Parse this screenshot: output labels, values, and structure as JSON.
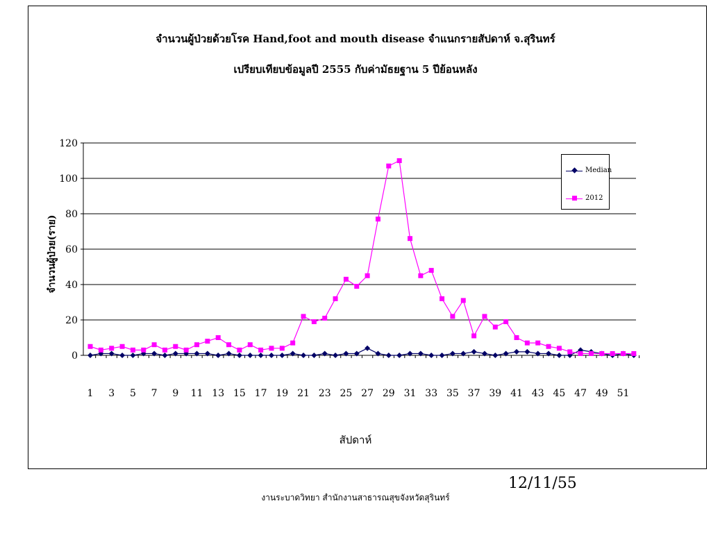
{
  "chart_data": {
    "type": "line",
    "title": "จำนวนผู้ป่วยด้วยโรค Hand,foot and mouth disease จำแนกรายสัปดาห์ จ.สุรินทร์",
    "subtitle": "เปรียบเทียบข้อมูลปี 2555 กับค่ามัธยฐาน 5 ปีย้อนหลัง",
    "xlabel": "สัปดาห์",
    "ylabel": "จำนวนผู้ป่วย(ราย)",
    "ylim": [
      0,
      120
    ],
    "yticks": [
      "0",
      "20",
      "40",
      "60",
      "80",
      "100",
      "120"
    ],
    "x": [
      1,
      2,
      3,
      4,
      5,
      6,
      7,
      8,
      9,
      10,
      11,
      12,
      13,
      14,
      15,
      16,
      17,
      18,
      19,
      20,
      21,
      22,
      23,
      24,
      25,
      26,
      27,
      28,
      29,
      30,
      31,
      32,
      33,
      34,
      35,
      36,
      37,
      38,
      39,
      40,
      41,
      42,
      43,
      44,
      45,
      46,
      47,
      48,
      49,
      50,
      51,
      52
    ],
    "xtick_labels": [
      "1",
      "3",
      "5",
      "7",
      "9",
      "11",
      "13",
      "15",
      "17",
      "19",
      "21",
      "23",
      "25",
      "27",
      "29",
      "31",
      "33",
      "35",
      "37",
      "39",
      "41",
      "43",
      "45",
      "47",
      "49",
      "51"
    ],
    "grid": true,
    "legend_position": "top-right",
    "series": [
      {
        "name": "Median",
        "color": "#000066",
        "marker": "diamond",
        "values": [
          0,
          1,
          1,
          0,
          0,
          1,
          1,
          0,
          1,
          1,
          1,
          1,
          0,
          1,
          0,
          0,
          0,
          0,
          0,
          1,
          0,
          0,
          1,
          0,
          1,
          1,
          4,
          1,
          0,
          0,
          1,
          1,
          0,
          0,
          1,
          1,
          2,
          1,
          0,
          1,
          2,
          2,
          1,
          1,
          0,
          0,
          3,
          2,
          1,
          0,
          1,
          0
        ]
      },
      {
        "name": "2012",
        "color": "#ff00ff",
        "marker": "square",
        "values": [
          5,
          3,
          4,
          5,
          3,
          3,
          6,
          3,
          5,
          3,
          6,
          8,
          10,
          6,
          3,
          6,
          3,
          4,
          4,
          7,
          22,
          19,
          21,
          32,
          43,
          39,
          45,
          77,
          107,
          110,
          66,
          45,
          48,
          32,
          22,
          31,
          11,
          22,
          16,
          19,
          10,
          7,
          7,
          5,
          4,
          2,
          1,
          1,
          1,
          1,
          1,
          1
        ]
      }
    ]
  },
  "footer": {
    "date": "12/11/55",
    "agency": "งานระบาดวิทยา สำนักงานสาธารณสุขจังหวัดสุรินทร์"
  }
}
